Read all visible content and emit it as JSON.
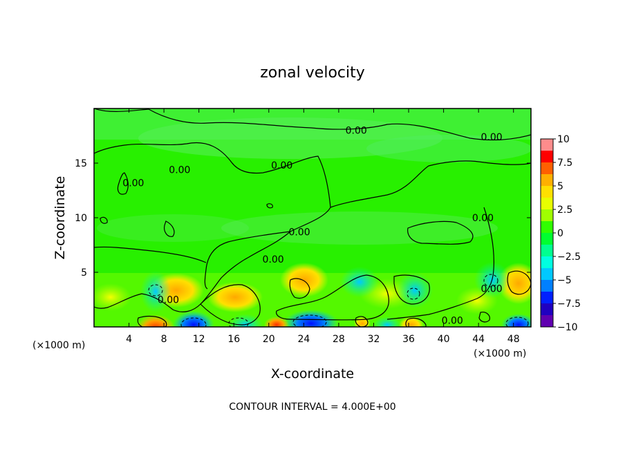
{
  "chart_data": {
    "type": "heatmap",
    "title": "zonal velocity",
    "xlabel": "X-coordinate",
    "ylabel": "Z-coordinate",
    "x_unit": "(×1000 m)",
    "footer": "CONTOUR INTERVAL = 4.000E+00",
    "xlim": [
      0,
      50
    ],
    "ylim": [
      0,
      20
    ],
    "x_ticks": [
      4,
      8,
      12,
      16,
      20,
      24,
      28,
      32,
      36,
      40,
      44,
      48
    ],
    "y_ticks": [
      5,
      10,
      15
    ],
    "colorbar": {
      "range": [
        -10,
        10
      ],
      "ticks": [
        "10",
        "7.5",
        "5",
        "2.5",
        "0",
        "−2.5",
        "−5",
        "−7.5",
        "−10"
      ],
      "colors": [
        "#ff8c8c",
        "#ff0000",
        "#ff6000",
        "#ffb000",
        "#ffe000",
        "#e8ff00",
        "#a0ff00",
        "#30ff00",
        "#00ff30",
        "#00ff90",
        "#00ffe0",
        "#00c8ff",
        "#0080ff",
        "#0020ff",
        "#2000c0",
        "#6000b0"
      ]
    },
    "contour_labels": [
      {
        "text": "0.00",
        "x": 30.0,
        "y": 18.0
      },
      {
        "text": "0.00",
        "x": 45.5,
        "y": 17.4
      },
      {
        "text": "0.00",
        "x": 21.5,
        "y": 14.8
      },
      {
        "text": "0.00",
        "x": 9.8,
        "y": 14.4
      },
      {
        "text": "0.00",
        "x": 4.5,
        "y": 13.2
      },
      {
        "text": "0.00",
        "x": 23.5,
        "y": 8.7
      },
      {
        "text": "0.00",
        "x": 20.5,
        "y": 6.2
      },
      {
        "text": "0.00",
        "x": 44.5,
        "y": 10.0
      },
      {
        "text": "0.00",
        "x": 8.5,
        "y": 2.5
      },
      {
        "text": "0.00",
        "x": 45.5,
        "y": 3.5
      },
      {
        "text": "0.00",
        "x": 41.0,
        "y": 0.6
      }
    ]
  }
}
